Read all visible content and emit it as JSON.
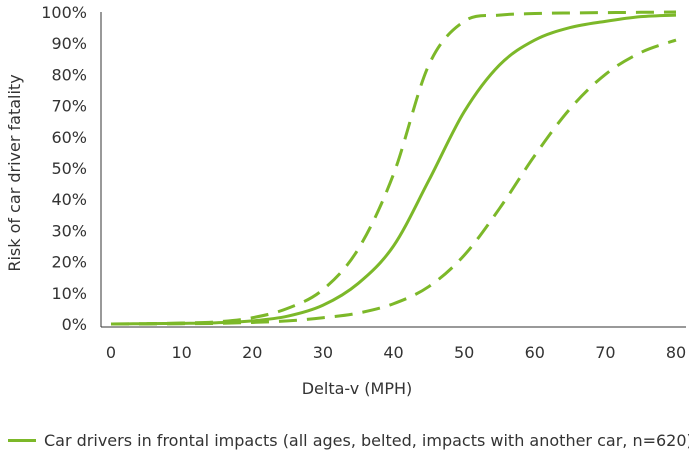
{
  "chart_data": {
    "type": "line",
    "title": "",
    "xlabel": "Delta-v (MPH)",
    "ylabel": "Risk of car driver fatality",
    "xlim": [
      0,
      80
    ],
    "ylim": [
      0,
      100
    ],
    "x_ticks": [
      "0",
      "10",
      "20",
      "30",
      "40",
      "50",
      "60",
      "70",
      "80"
    ],
    "y_ticks": [
      "0%",
      "10%",
      "20%",
      "30%",
      "40%",
      "50%",
      "60%",
      "70%",
      "80%",
      "90%",
      "100%"
    ],
    "grid": false,
    "legend_position": "bottom-left",
    "color": "#7cb829",
    "series": [
      {
        "name": "Car drivers in frontal impacts (all ages, belted, impacts with another car, n=620)",
        "style": "solid",
        "x": [
          0,
          5,
          10,
          15,
          20,
          25,
          30,
          35,
          40,
          45,
          50,
          55,
          60,
          65,
          70,
          75,
          80
        ],
        "y": [
          0,
          0.1,
          0.2,
          0.4,
          1,
          2.5,
          6,
          13,
          25,
          46,
          68,
          83,
          91,
          95,
          97,
          98.5,
          99
        ]
      },
      {
        "style": "dashed",
        "x": [
          0,
          5,
          10,
          15,
          20,
          25,
          30,
          35,
          40,
          45,
          50,
          55,
          60,
          65,
          70,
          75,
          80
        ],
        "y": [
          0,
          0.1,
          0.3,
          0.7,
          2,
          5,
          11,
          24,
          48,
          83,
          97,
          99,
          99.5,
          99.7,
          99.8,
          99.9,
          100
        ]
      },
      {
        "style": "dashed",
        "x": [
          0,
          5,
          10,
          15,
          20,
          25,
          30,
          35,
          40,
          45,
          50,
          55,
          60,
          65,
          70,
          75,
          80
        ],
        "y": [
          0,
          0,
          0.1,
          0.2,
          0.5,
          1,
          2,
          3.5,
          6.5,
          12,
          22,
          37,
          54,
          69,
          80,
          87,
          91
        ]
      }
    ]
  }
}
